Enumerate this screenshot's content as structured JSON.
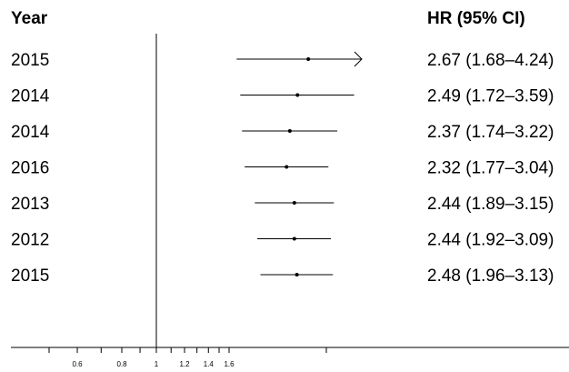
{
  "chart_data": {
    "type": "forest",
    "header_left": "Year",
    "header_right": "HR (95% CI)",
    "x_scale": "log",
    "xlim": [
      0.49,
      3.5
    ],
    "reference_value": 1,
    "x_ticks": [
      0.5,
      0.6,
      0.7,
      0.8,
      0.9,
      1,
      1.1,
      1.2,
      1.3,
      1.4,
      1.5,
      1.6,
      3
    ],
    "x_tick_labels": [
      {
        "value": 0.6,
        "label": "0.6"
      },
      {
        "value": 0.8,
        "label": "0.8"
      },
      {
        "value": 1,
        "label": "1"
      },
      {
        "value": 1.2,
        "label": "1.2"
      },
      {
        "value": 1.4,
        "label": "1.4"
      },
      {
        "value": 1.6,
        "label": "1.6"
      }
    ],
    "rows": [
      {
        "label": "2015",
        "hr": 2.67,
        "lower": 1.68,
        "upper": 4.24,
        "text": "2.67 (1.68–4.24)",
        "truncated_upper": true
      },
      {
        "label": "2014",
        "hr": 2.49,
        "lower": 1.72,
        "upper": 3.59,
        "text": "2.49 (1.72–3.59)",
        "truncated_upper": false
      },
      {
        "label": "2014",
        "hr": 2.37,
        "lower": 1.74,
        "upper": 3.22,
        "text": "2.37 (1.74–3.22)",
        "truncated_upper": false
      },
      {
        "label": "2016",
        "hr": 2.32,
        "lower": 1.77,
        "upper": 3.04,
        "text": "2.32 (1.77–3.04)",
        "truncated_upper": false
      },
      {
        "label": "2013",
        "hr": 2.44,
        "lower": 1.89,
        "upper": 3.15,
        "text": "2.44 (1.89–3.15)",
        "truncated_upper": false
      },
      {
        "label": "2012",
        "hr": 2.44,
        "lower": 1.92,
        "upper": 3.09,
        "text": "2.44 (1.92–3.09)",
        "truncated_upper": false
      },
      {
        "label": "2015",
        "hr": 2.48,
        "lower": 1.96,
        "upper": 3.13,
        "text": "2.48 (1.96–3.13)",
        "truncated_upper": false
      }
    ]
  }
}
